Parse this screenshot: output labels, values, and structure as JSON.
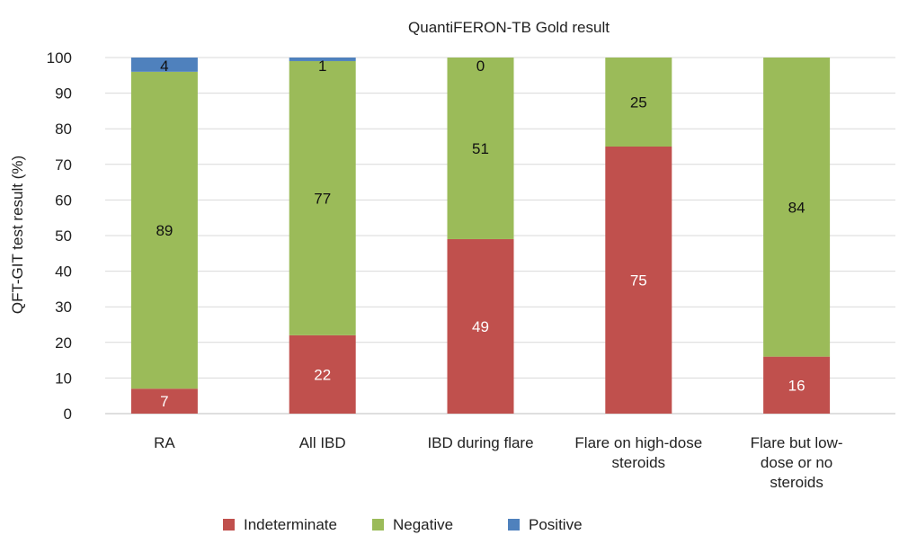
{
  "chart_data": {
    "type": "bar",
    "stacked": true,
    "title": "QuantiFERON-TB Gold result",
    "xlabel": "",
    "ylabel": "QFT-GIT test result (%)",
    "ylim": [
      0,
      100
    ],
    "yticks": [
      0,
      10,
      20,
      30,
      40,
      50,
      60,
      70,
      80,
      90,
      100
    ],
    "grid": true,
    "legend_position": "bottom",
    "categories": [
      [
        "RA"
      ],
      [
        "All IBD"
      ],
      [
        "IBD during flare"
      ],
      [
        "Flare on high-dose",
        "steroids"
      ],
      [
        "Flare but low-",
        "dose or no",
        "steroids"
      ]
    ],
    "series": [
      {
        "name": "Indeterminate",
        "color": "#c0504d",
        "label_color": "#ffffff",
        "values": [
          7,
          22,
          49,
          75,
          16
        ],
        "labels": [
          "7",
          "22",
          "49",
          "75",
          "16"
        ]
      },
      {
        "name": "Negative",
        "color": "#9bbb59",
        "label_color": "#111111",
        "values": [
          89,
          77,
          51,
          25,
          84
        ],
        "labels": [
          "89",
          "77",
          "51",
          "25",
          "84"
        ]
      },
      {
        "name": "Positive",
        "color": "#4f81bd",
        "label_color": "#111111",
        "values": [
          4,
          1,
          0,
          0,
          0
        ],
        "labels": [
          "4",
          "1",
          "0",
          "",
          ""
        ]
      }
    ]
  }
}
